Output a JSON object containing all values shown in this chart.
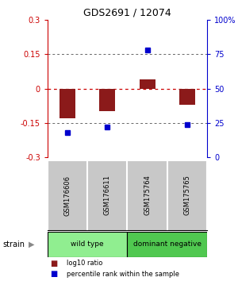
{
  "title": "GDS2691 / 12074",
  "samples": [
    "GSM176606",
    "GSM176611",
    "GSM175764",
    "GSM175765"
  ],
  "log10_ratio": [
    -0.13,
    -0.1,
    0.04,
    -0.07
  ],
  "percentile_rank": [
    18,
    22,
    78,
    24
  ],
  "groups": [
    {
      "label": "wild type",
      "samples": [
        0,
        1
      ],
      "color": "#90EE90"
    },
    {
      "label": "dominant negative",
      "samples": [
        2,
        3
      ],
      "color": "#50C850"
    }
  ],
  "bar_color": "#8B1A1A",
  "dot_color": "#0000CD",
  "ylim_left": [
    -0.3,
    0.3
  ],
  "ylim_right": [
    0,
    100
  ],
  "yticks_left": [
    -0.3,
    -0.15,
    0,
    0.15,
    0.3
  ],
  "yticks_right": [
    0,
    25,
    50,
    75,
    100
  ],
  "ytick_labels_right": [
    "0",
    "25",
    "50",
    "75",
    "100%"
  ],
  "hline_color": "#CC0000",
  "dotted_color": "#666666",
  "bg_plot": "#FFFFFF",
  "bg_label": "#C8C8C8",
  "strain_label": "strain",
  "legend_ratio_label": "log10 ratio",
  "legend_pct_label": "percentile rank within the sample",
  "bar_width": 0.4
}
